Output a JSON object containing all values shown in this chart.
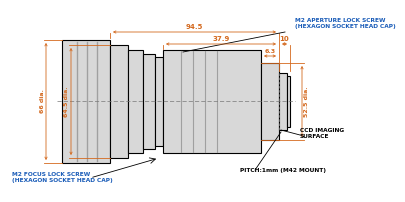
{
  "bg_color": "#ffffff",
  "line_color": "#000000",
  "dim_color": "#d4691e",
  "body_fill": "#d8d8d8",
  "body_dark": "#a0a0a0",
  "annotation_color": "#1a5cb8",
  "fig_width": 3.62,
  "fig_height": 1.82,
  "dimensions": {
    "dim_945": "94.5",
    "dim_379": "37.9",
    "dim_10": "10",
    "dim_63": "6.3",
    "dim_66": "66 dia.",
    "dim_645": "64.5 dia.",
    "dim_525": "52.5 dia."
  },
  "labels": {
    "aperture_lock": "M2 APERTURE LOCK SCREW\n(HEXAGON SOCKET HEAD CAP)",
    "focus_lock": "M2 FOCUS LOCK SCREW\n(HEXAGON SOCKET HEAD CAP)",
    "ccd": "CCD IMAGING\nSURFACE",
    "pitch": "PITCH:1mm (M42 MOUNT)"
  }
}
